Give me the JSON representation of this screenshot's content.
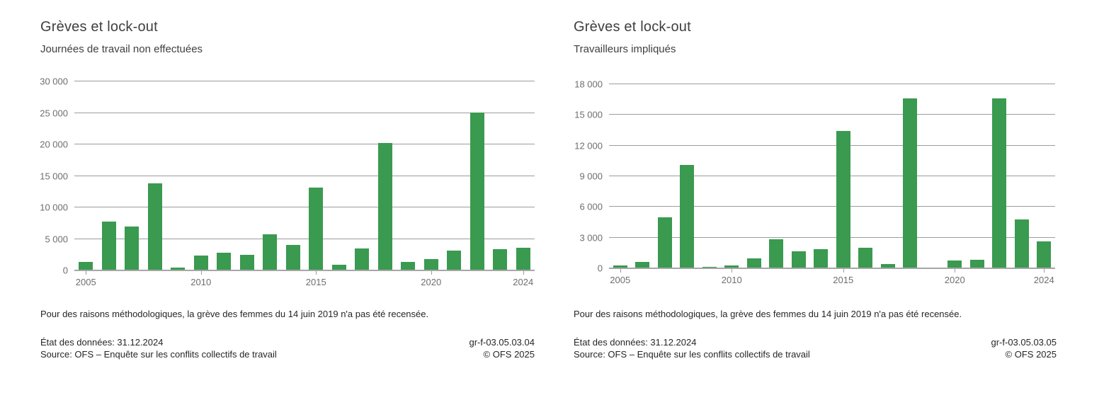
{
  "colors": {
    "bar_green": "#3a9a50",
    "gridline": "#9c9c9c",
    "axis_line": "#a6a6a6",
    "tick_text": "#6e6e6e",
    "title_text": "#3f3f3f",
    "body_text": "#262626",
    "background": "#ffffff"
  },
  "chart_data": [
    {
      "type": "bar",
      "title": "Grèves et lock-out",
      "subtitle": "Journées de travail non effectuées",
      "xlabel": "",
      "ylabel": "",
      "ylim": [
        0,
        30000
      ],
      "ytick_step": 5000,
      "grid": true,
      "legend_position": "none",
      "bar_color": "#3a9a50",
      "categories": [
        "2005",
        "2006",
        "2007",
        "2008",
        "2009",
        "2010",
        "2011",
        "2012",
        "2013",
        "2014",
        "2015",
        "2016",
        "2017",
        "2018",
        "2019",
        "2020",
        "2021",
        "2022",
        "2023",
        "2024"
      ],
      "values": [
        1400,
        7800,
        7000,
        13800,
        400,
        2400,
        2800,
        2500,
        5700,
        4100,
        13200,
        900,
        3500,
        20200,
        1300,
        1800,
        3100,
        25100,
        3400,
        3600
      ],
      "x_labeled_ticks": [
        "2005",
        "2010",
        "2015",
        "2020",
        "2024"
      ],
      "footnote": "Pour des raisons méthodologiques, la grève des femmes du 14 juin 2019 n'a pas été recensée.",
      "status_line": "État des données: 31.12.2024",
      "source_line": "Source: OFS – Enquête sur les conflits collectifs de travail",
      "figure_code": "gr-f-03.05.03.04",
      "copyright": "© OFS 2025"
    },
    {
      "type": "bar",
      "title": "Grèves et lock-out",
      "subtitle": "Travailleurs impliqués",
      "xlabel": "",
      "ylabel": "",
      "ylim": [
        0,
        18000
      ],
      "ytick_step": 3000,
      "grid": true,
      "legend_position": "none",
      "bar_color": "#3a9a50",
      "categories": [
        "2005",
        "2006",
        "2007",
        "2008",
        "2009",
        "2010",
        "2011",
        "2012",
        "2013",
        "2014",
        "2015",
        "2016",
        "2017",
        "2018",
        "2019",
        "2020",
        "2021",
        "2022",
        "2023",
        "2024"
      ],
      "values": [
        300,
        600,
        5000,
        10100,
        150,
        250,
        1000,
        2850,
        1650,
        1900,
        13400,
        2000,
        450,
        16600,
        100,
        750,
        800,
        16650,
        4800,
        2650
      ],
      "x_labeled_ticks": [
        "2005",
        "2010",
        "2015",
        "2020",
        "2024"
      ],
      "footnote": "Pour des raisons méthodologiques, la grève des femmes du 14 juin 2019 n'a pas été recensée.",
      "status_line": "État des données: 31.12.2024",
      "source_line": "Source: OFS – Enquête sur les conflits collectifs de travail",
      "figure_code": "gr-f-03.05.03.05",
      "copyright": "© OFS 2025"
    }
  ]
}
